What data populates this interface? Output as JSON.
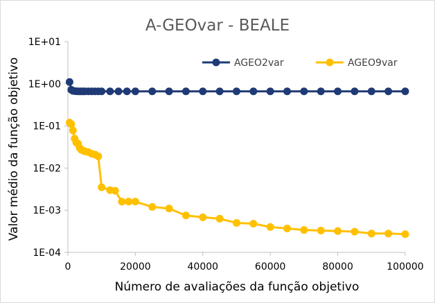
{
  "chart_data": {
    "type": "line",
    "title": "A-GEOvar - BEALE",
    "xlabel": "Número de avaliações da função objetivo",
    "ylabel": "Valor médio da função objetivo",
    "xlim": [
      0,
      100000
    ],
    "x_ticks": [
      0,
      20000,
      40000,
      60000,
      80000,
      100000
    ],
    "x_tick_labels": [
      "0",
      "20000",
      "40000",
      "60000",
      "80000",
      "100000"
    ],
    "y_scale": "log",
    "ylim": [
      0.0001,
      10
    ],
    "y_ticks": [
      10,
      1,
      0.1,
      0.01,
      0.001,
      0.0001
    ],
    "y_tick_labels": [
      "1E+01",
      "1E+00",
      "1E-01",
      "1E-02",
      "1E-03",
      "1E-04"
    ],
    "grid": false,
    "legend_position": "top-right",
    "series": [
      {
        "name": "AGEO2var",
        "color": "#1f3a75",
        "points": [
          [
            500,
            1.1
          ],
          [
            1000,
            0.72
          ],
          [
            1500,
            0.68
          ],
          [
            2000,
            0.67
          ],
          [
            2500,
            0.665
          ],
          [
            3000,
            0.66
          ],
          [
            3500,
            0.66
          ],
          [
            4000,
            0.66
          ],
          [
            4500,
            0.66
          ],
          [
            5000,
            0.66
          ],
          [
            6000,
            0.66
          ],
          [
            7000,
            0.66
          ],
          [
            8000,
            0.66
          ],
          [
            9000,
            0.66
          ],
          [
            10000,
            0.66
          ],
          [
            12500,
            0.66
          ],
          [
            15000,
            0.66
          ],
          [
            17500,
            0.66
          ],
          [
            20000,
            0.66
          ],
          [
            25000,
            0.66
          ],
          [
            30000,
            0.66
          ],
          [
            35000,
            0.66
          ],
          [
            40000,
            0.66
          ],
          [
            45000,
            0.66
          ],
          [
            50000,
            0.66
          ],
          [
            55000,
            0.66
          ],
          [
            60000,
            0.66
          ],
          [
            65000,
            0.66
          ],
          [
            70000,
            0.66
          ],
          [
            75000,
            0.66
          ],
          [
            80000,
            0.66
          ],
          [
            85000,
            0.66
          ],
          [
            90000,
            0.66
          ],
          [
            95000,
            0.66
          ],
          [
            100000,
            0.66
          ]
        ]
      },
      {
        "name": "AGEO9var",
        "color": "#ffc000",
        "points": [
          [
            500,
            0.12
          ],
          [
            1000,
            0.11
          ],
          [
            1500,
            0.078
          ],
          [
            2000,
            0.05
          ],
          [
            2500,
            0.04
          ],
          [
            3000,
            0.038
          ],
          [
            3500,
            0.03
          ],
          [
            4000,
            0.027
          ],
          [
            4500,
            0.026
          ],
          [
            5000,
            0.025
          ],
          [
            6000,
            0.024
          ],
          [
            7000,
            0.022
          ],
          [
            8000,
            0.021
          ],
          [
            9000,
            0.019
          ],
          [
            10000,
            0.0035
          ],
          [
            12500,
            0.003
          ],
          [
            14000,
            0.0029
          ],
          [
            16000,
            0.0016
          ],
          [
            18000,
            0.0016
          ],
          [
            20000,
            0.0016
          ],
          [
            25000,
            0.0012
          ],
          [
            30000,
            0.0011
          ],
          [
            35000,
            0.00075
          ],
          [
            40000,
            0.00068
          ],
          [
            45000,
            0.00063
          ],
          [
            50000,
            0.0005
          ],
          [
            55000,
            0.00048
          ],
          [
            60000,
            0.0004
          ],
          [
            65000,
            0.00037
          ],
          [
            70000,
            0.00034
          ],
          [
            75000,
            0.00033
          ],
          [
            80000,
            0.00032
          ],
          [
            85000,
            0.00031
          ],
          [
            90000,
            0.00028
          ],
          [
            95000,
            0.00028
          ],
          [
            100000,
            0.00027
          ]
        ]
      }
    ]
  }
}
